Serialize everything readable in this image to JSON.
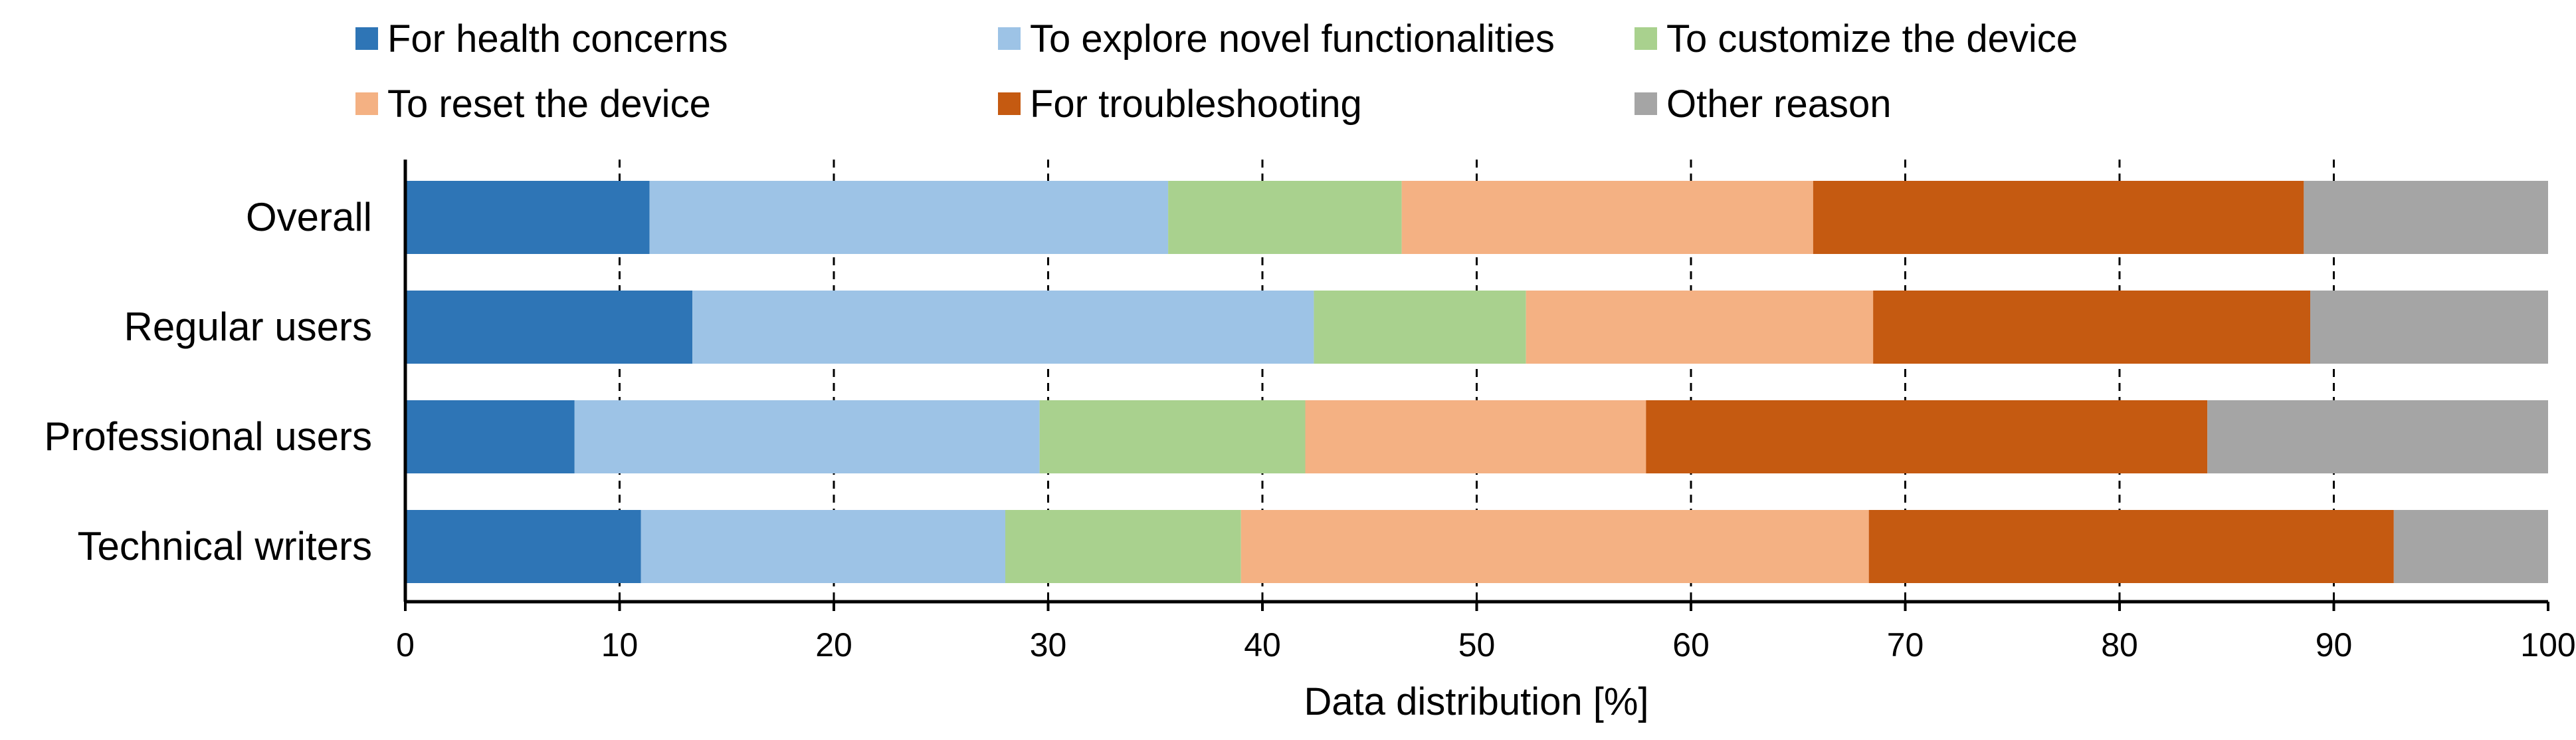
{
  "chart_data": {
    "type": "bar",
    "orientation": "horizontal",
    "stacked": true,
    "xlabel": "Data distribution [%]",
    "ylabel": "",
    "xlim": [
      0,
      100
    ],
    "xticks": [
      0,
      10,
      20,
      30,
      40,
      50,
      60,
      70,
      80,
      90,
      100
    ],
    "grid": "vertical dashed",
    "legend_position": "top",
    "categories": [
      "Overall",
      "Regular users",
      "Professional users",
      "Technical writers"
    ],
    "series": [
      {
        "name": "For health concerns",
        "color": "#2E75B6",
        "values": [
          11.4,
          13.4,
          7.9,
          11.0
        ]
      },
      {
        "name": "To explore novel functionalities",
        "color": "#9DC3E6",
        "values": [
          24.2,
          29.0,
          21.7,
          17.0
        ]
      },
      {
        "name": "To customize the device",
        "color": "#A9D18E",
        "values": [
          10.9,
          9.9,
          12.4,
          11.0
        ]
      },
      {
        "name": "To reset the device",
        "color": "#F4B183",
        "values": [
          19.2,
          16.2,
          15.9,
          29.3
        ]
      },
      {
        "name": "For troubleshooting",
        "color": "#C55A11",
        "values": [
          22.9,
          20.4,
          26.2,
          24.5
        ]
      },
      {
        "name": "Other reason",
        "color": "#A5A5A5",
        "values": [
          11.4,
          11.1,
          15.9,
          7.2
        ]
      }
    ]
  }
}
